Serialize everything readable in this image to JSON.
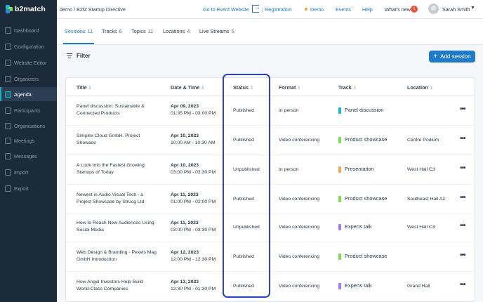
{
  "brand": {
    "name": "b2match"
  },
  "sidebar": {
    "items": [
      {
        "label": "Dashboard",
        "icon": "dashboard-icon",
        "active": false
      },
      {
        "label": "Configuration",
        "icon": "gear-icon",
        "active": false
      },
      {
        "label": "Website Editor",
        "icon": "pencil-icon",
        "active": false
      },
      {
        "label": "Organizers",
        "icon": "user-icon",
        "active": false
      },
      {
        "label": "Agenda",
        "icon": "calendar-icon",
        "active": true
      },
      {
        "label": "Participants",
        "icon": "users-icon",
        "active": false
      },
      {
        "label": "Organisations",
        "icon": "building-icon",
        "active": false
      },
      {
        "label": "Meetings",
        "icon": "meetings-icon",
        "active": false
      },
      {
        "label": "Messages",
        "icon": "envelope-icon",
        "active": false
      },
      {
        "label": "Import",
        "icon": "import-icon",
        "active": false
      },
      {
        "label": "Export",
        "icon": "export-icon",
        "active": false
      }
    ]
  },
  "header": {
    "breadcrumb": "demo / B2M Startup Directive",
    "go_to_event": "Go to Event Website",
    "separator": "|",
    "registration": "Registration",
    "demo": "Demo",
    "events": "Events",
    "help": "Help",
    "whats_new": "What's new",
    "whats_new_count": "1",
    "user_name": "Sarah Smith"
  },
  "tabs": [
    {
      "label": "Sessions",
      "count": "11",
      "active": true
    },
    {
      "label": "Tracks",
      "count": "6",
      "active": false
    },
    {
      "label": "Topics",
      "count": "11",
      "active": false
    },
    {
      "label": "Locations",
      "count": "4",
      "active": false
    },
    {
      "label": "Live Streams",
      "count": "5",
      "active": false
    }
  ],
  "toolbar": {
    "filter_label": "Filter",
    "add_session_label": "Add session"
  },
  "table": {
    "columns": [
      "Title",
      "Date & Time",
      "Status",
      "Format",
      "Track",
      "Location"
    ],
    "rows": [
      {
        "title": "Panel discussion: Sustainable & Connected Products",
        "date": "Apr 09, 2023",
        "time": "01:35 PM - 03:00 PM",
        "status": "Published",
        "format": "In person",
        "track": "Panel discussion",
        "track_color": "#1fb8c9",
        "location": ""
      },
      {
        "title": "Simplex Cloud GmbH. Project Showase",
        "date": "Apr 10, 2023",
        "time": "10:00 AM - 10:30 AM",
        "status": "Published",
        "format": "Video conferencing",
        "track": "Product showcase",
        "track_color": "#7ed957",
        "location": "Centre Podium"
      },
      {
        "title": "A Look Into the Fastest Growing Startups of Today",
        "date": "Apr 10, 2023",
        "time": "03:00 PM - 03:30 PM",
        "status": "Unpublished",
        "format": "In person",
        "track": "Presentation",
        "track_color": "#f5a65b",
        "location": "West Hall C3"
      },
      {
        "title": "Newest in Audio Visual Tech - a Project Showcase by Strucg Ltd.",
        "date": "Apr 11, 2023",
        "time": "01:00 PM - 02:00 PM",
        "status": "Published",
        "format": "Video conferencing",
        "track": "Product showcase",
        "track_color": "#7ed957",
        "location": "Southeast Hall A2"
      },
      {
        "title": "How to Reach New Audiences Using Social Media",
        "date": "Apr 11, 2023",
        "time": "03:00 PM - 03:30 PM",
        "status": "Unpublished",
        "format": "Video conferencing",
        "track": "Experts talk",
        "track_color": "#a77be8",
        "location": "West Hall C3"
      },
      {
        "title": "Web Design & Branding - Pexels Mag GmbH Introduction",
        "date": "Apr 12, 2023",
        "time": "12:00 PM - 12:30 PM",
        "status": "Published",
        "format": "Video conferencing",
        "track": "Product showcase",
        "track_color": "#7ed957",
        "location": ""
      },
      {
        "title": "How Angel Investors Help Build World-Class Companies",
        "date": "Apr 13, 2023",
        "time": "12:30 PM - 01:30 PM",
        "status": "Published",
        "format": "Video conferencing",
        "track": "Experts talk",
        "track_color": "#a77be8",
        "location": "Grand Hall"
      }
    ]
  },
  "colors": {
    "accent": "#1f7ac7",
    "sidebar_bg": "#1c2b3a",
    "highlight": "#2d40c8"
  }
}
